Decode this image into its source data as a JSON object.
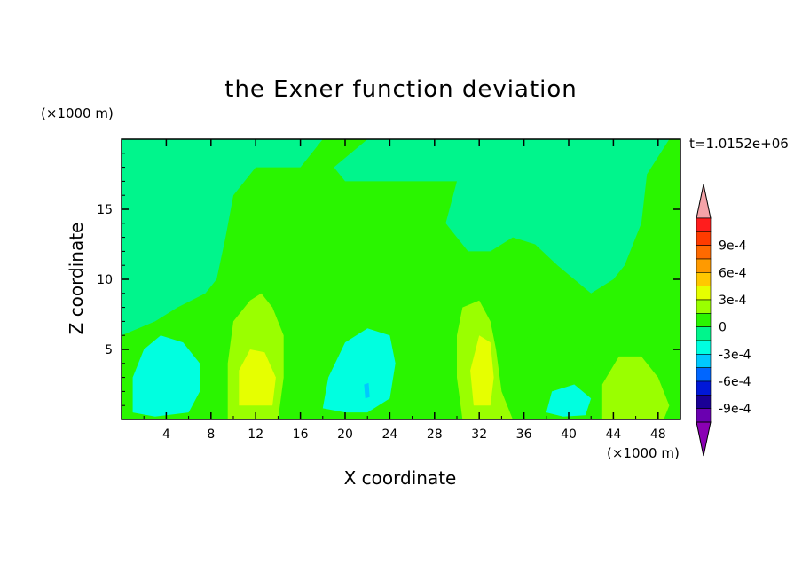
{
  "chart_data": {
    "type": "heatmap",
    "title": "the Exner function deviation",
    "xlabel": "X coordinate",
    "ylabel": "Z coordinate",
    "x_unit": "(×1000 m)",
    "z_unit": "(×1000 m)",
    "time_label": "t=1.0152e+06",
    "xlim": [
      0,
      50
    ],
    "ylim": [
      0,
      20
    ],
    "x_ticks": [
      "4",
      "8",
      "12",
      "16",
      "20",
      "24",
      "28",
      "32",
      "36",
      "40",
      "44",
      "48"
    ],
    "y_ticks": [
      "5",
      "10",
      "15"
    ],
    "colorbar": {
      "levels": [
        {
          "label": "",
          "color": "#f4a3a8"
        },
        {
          "label": "",
          "color": "#ff1d1d"
        },
        {
          "label": "9e-4",
          "color": "#ff3b00"
        },
        {
          "label": "",
          "color": "#ff6a00"
        },
        {
          "label": "6e-4",
          "color": "#ff9a00"
        },
        {
          "label": "",
          "color": "#ffc800"
        },
        {
          "label": "3e-4",
          "color": "#e6ff00"
        },
        {
          "label": "",
          "color": "#9aff00"
        },
        {
          "label": "0",
          "color": "#2af500"
        },
        {
          "label": "",
          "color": "#00f58c"
        },
        {
          "label": "-3e-4",
          "color": "#00ffe0"
        },
        {
          "label": "",
          "color": "#00c8ff"
        },
        {
          "label": "-6e-4",
          "color": "#0066ff"
        },
        {
          "label": "",
          "color": "#0018d8"
        },
        {
          "label": "-9e-4",
          "color": "#1a0096"
        },
        {
          "label": "",
          "color": "#6a00b0"
        },
        {
          "label": "",
          "color": "#8a00b4"
        }
      ]
    },
    "field": {
      "background": "#00f58c",
      "regions": [
        {
          "level": "0",
          "color": "#2af500",
          "points": [
            [
              5.5,
              20
            ],
            [
              18,
              20
            ],
            [
              16,
              18
            ],
            [
              12,
              18
            ],
            [
              10,
              16
            ],
            [
              9.3,
              13
            ],
            [
              8.5,
              10
            ],
            [
              7.5,
              9
            ],
            [
              5,
              8
            ],
            [
              3,
              7
            ],
            [
              0,
              6
            ],
            [
              0,
              0
            ],
            [
              50,
              0
            ],
            [
              50,
              20
            ],
            [
              49,
              20
            ],
            [
              47,
              17.5
            ],
            [
              46.5,
              14
            ],
            [
              45.5,
              12
            ],
            [
              45,
              11
            ],
            [
              44,
              10
            ],
            [
              42,
              9
            ],
            [
              39,
              11
            ],
            [
              37,
              12.5
            ],
            [
              35,
              13
            ],
            [
              33,
              12
            ],
            [
              31,
              12
            ],
            [
              29,
              14
            ],
            [
              30,
              17
            ],
            [
              27,
              17
            ],
            [
              20,
              17
            ],
            [
              19,
              18
            ],
            [
              22,
              20
            ]
          ]
        },
        {
          "level": "0",
          "color": "#2af500",
          "points": [
            [
              24,
              0
            ],
            [
              26,
              3
            ],
            [
              26.5,
              6
            ],
            [
              27,
              9
            ],
            [
              28,
              10
            ],
            [
              29.5,
              10
            ],
            [
              30,
              7
            ],
            [
              31,
              5
            ],
            [
              33,
              4
            ],
            [
              35,
              5
            ],
            [
              38,
              7
            ],
            [
              40,
              6
            ],
            [
              42,
              4
            ],
            [
              44,
              2
            ],
            [
              45.5,
              0
            ]
          ]
        },
        {
          "level": "3e-4 to 6e-4",
          "color": "#9aff00",
          "points": [
            [
              9.5,
              0
            ],
            [
              9.5,
              4
            ],
            [
              10,
              7
            ],
            [
              11.5,
              8.5
            ],
            [
              12.5,
              9
            ],
            [
              13.5,
              8
            ],
            [
              14.5,
              6
            ],
            [
              14.5,
              3
            ],
            [
              14,
              0
            ]
          ]
        },
        {
          "level": "3e-4 to 6e-4",
          "color": "#9aff00",
          "points": [
            [
              30.5,
              0
            ],
            [
              30,
              3
            ],
            [
              30,
              6
            ],
            [
              30.5,
              8
            ],
            [
              32,
              8.5
            ],
            [
              33,
              7
            ],
            [
              33.5,
              5
            ],
            [
              34,
              2
            ],
            [
              35,
              0
            ]
          ]
        },
        {
          "level": "3e-4 to 6e-4",
          "color": "#9aff00",
          "points": [
            [
              43,
              0
            ],
            [
              43,
              2.5
            ],
            [
              44.5,
              4.5
            ],
            [
              46.5,
              4.5
            ],
            [
              48,
              3
            ],
            [
              49,
              1
            ],
            [
              48.5,
              0
            ]
          ]
        },
        {
          "level": "6e-4 to 9e-4",
          "color": "#e6ff00",
          "points": [
            [
              10.5,
              1
            ],
            [
              10.5,
              3.5
            ],
            [
              11.5,
              5
            ],
            [
              12.8,
              4.8
            ],
            [
              13.8,
              3
            ],
            [
              13.5,
              1
            ]
          ]
        },
        {
          "level": "6e-4 to 9e-4",
          "color": "#e6ff00",
          "points": [
            [
              31.5,
              1
            ],
            [
              31.2,
              3.5
            ],
            [
              32,
              6
            ],
            [
              33,
              5.5
            ],
            [
              33.3,
              3
            ],
            [
              33,
              1
            ]
          ]
        },
        {
          "level": "-3e-4 to 0",
          "color": "#00ffe0",
          "points": [
            [
              1,
              0.5
            ],
            [
              1,
              3
            ],
            [
              2,
              5
            ],
            [
              3.5,
              6
            ],
            [
              5.5,
              5.5
            ],
            [
              7,
              4
            ],
            [
              7,
              2
            ],
            [
              6,
              0.5
            ],
            [
              3,
              0.2
            ]
          ]
        },
        {
          "level": "-3e-4 to 0",
          "color": "#00ffe0",
          "points": [
            [
              18,
              0.8
            ],
            [
              18.5,
              3
            ],
            [
              20,
              5.5
            ],
            [
              22,
              6.5
            ],
            [
              24,
              6
            ],
            [
              24.5,
              4
            ],
            [
              24,
              1.5
            ],
            [
              22,
              0.5
            ],
            [
              20,
              0.5
            ]
          ]
        },
        {
          "level": "-3e-4 to 0",
          "color": "#00ffe0",
          "points": [
            [
              38,
              0.5
            ],
            [
              38.5,
              2
            ],
            [
              40.5,
              2.5
            ],
            [
              42,
              1.5
            ],
            [
              41.5,
              0.3
            ],
            [
              39.5,
              0.2
            ]
          ]
        },
        {
          "level": "-6e-4 to -3e-4",
          "color": "#00c8ff",
          "points": [
            [
              21.8,
              1.5
            ],
            [
              21.7,
              2.5
            ],
            [
              22.1,
              2.6
            ],
            [
              22.2,
              1.6
            ]
          ]
        }
      ]
    }
  }
}
